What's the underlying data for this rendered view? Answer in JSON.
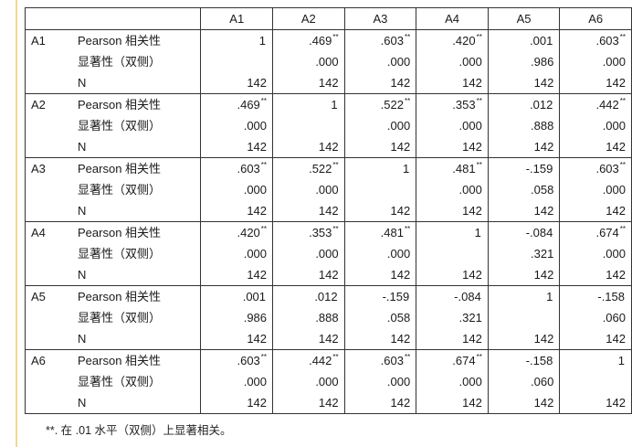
{
  "columns": [
    "A1",
    "A2",
    "A3",
    "A4",
    "A5",
    "A6"
  ],
  "stat_labels": [
    "Pearson 相关性",
    "显著性（双侧）",
    "N"
  ],
  "rows": [
    {
      "var": "A1",
      "pearson": [
        "1",
        ".469",
        ".603",
        ".420",
        ".001",
        ".603"
      ],
      "pearson_sig": [
        "",
        "**",
        "**",
        "**",
        "",
        "**"
      ],
      "sig": [
        "",
        ".000",
        ".000",
        ".000",
        ".986",
        ".000"
      ],
      "n": [
        "142",
        "142",
        "142",
        "142",
        "142",
        "142"
      ]
    },
    {
      "var": "A2",
      "pearson": [
        ".469",
        "1",
        ".522",
        ".353",
        ".012",
        ".442"
      ],
      "pearson_sig": [
        "**",
        "",
        "**",
        "**",
        "",
        "**"
      ],
      "sig": [
        ".000",
        "",
        ".000",
        ".000",
        ".888",
        ".000"
      ],
      "n": [
        "142",
        "142",
        "142",
        "142",
        "142",
        "142"
      ]
    },
    {
      "var": "A3",
      "pearson": [
        ".603",
        ".522",
        "1",
        ".481",
        "-.159",
        ".603"
      ],
      "pearson_sig": [
        "**",
        "**",
        "",
        "**",
        "",
        "**"
      ],
      "sig": [
        ".000",
        ".000",
        "",
        ".000",
        ".058",
        ".000"
      ],
      "n": [
        "142",
        "142",
        "142",
        "142",
        "142",
        "142"
      ]
    },
    {
      "var": "A4",
      "pearson": [
        ".420",
        ".353",
        ".481",
        "1",
        "-.084",
        ".674"
      ],
      "pearson_sig": [
        "**",
        "**",
        "**",
        "",
        "",
        "**"
      ],
      "sig": [
        ".000",
        ".000",
        ".000",
        "",
        ".321",
        ".000"
      ],
      "n": [
        "142",
        "142",
        "142",
        "142",
        "142",
        "142"
      ]
    },
    {
      "var": "A5",
      "pearson": [
        ".001",
        ".012",
        "-.159",
        "-.084",
        "1",
        "-.158"
      ],
      "pearson_sig": [
        "",
        "",
        "",
        "",
        "",
        ""
      ],
      "sig": [
        ".986",
        ".888",
        ".058",
        ".321",
        "",
        ".060"
      ],
      "n": [
        "142",
        "142",
        "142",
        "142",
        "142",
        "142"
      ]
    },
    {
      "var": "A6",
      "pearson": [
        ".603",
        ".442",
        ".603",
        ".674",
        "-.158",
        "1"
      ],
      "pearson_sig": [
        "**",
        "**",
        "**",
        "**",
        "",
        ""
      ],
      "sig": [
        ".000",
        ".000",
        ".000",
        ".000",
        ".060",
        ""
      ],
      "n": [
        "142",
        "142",
        "142",
        "142",
        "142",
        "142"
      ]
    }
  ],
  "footnote": "**. 在 .01 水平（双侧）上显著相关。",
  "colors": {
    "border": "#333333",
    "accent_bar": "#f1d892"
  }
}
